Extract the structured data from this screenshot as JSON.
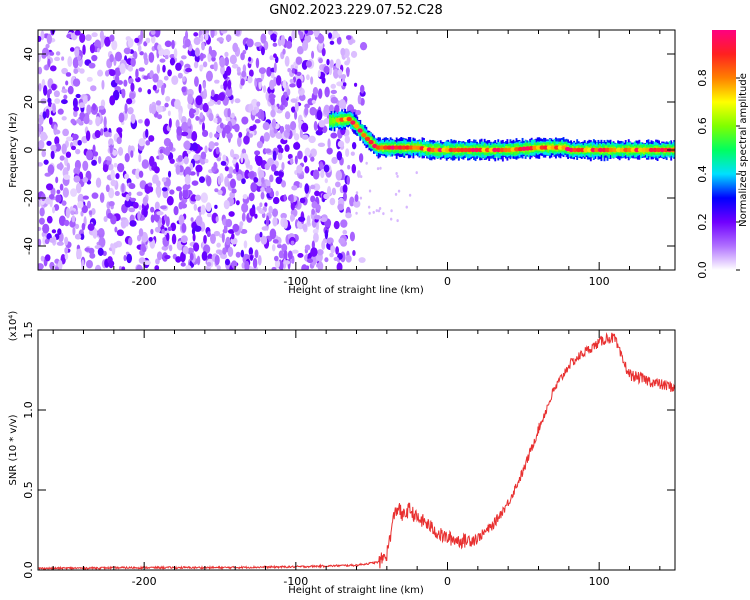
{
  "title": "GN02.2023.229.07.52.C28",
  "chart_data": [
    {
      "type": "heatmap",
      "xlabel": "Height of straight line (km)",
      "ylabel": "Frequency (Hz)",
      "xlim": [
        -270,
        150
      ],
      "ylim": [
        -50,
        50
      ],
      "xticks": [
        -200,
        -100,
        0,
        100
      ],
      "xtick_labels": [
        "-200",
        "-100",
        "0",
        "100"
      ],
      "yticks": [
        -40,
        -20,
        0,
        20,
        40
      ],
      "ytick_labels": [
        "-40",
        "-20",
        "0",
        "20",
        "40"
      ],
      "grid": false,
      "colorbar": {
        "label": "Normalized spectral amplitude",
        "range": [
          0,
          1
        ],
        "ticks": [
          0,
          0.2,
          0.4,
          0.6,
          0.8
        ],
        "tick_labels": [
          "0.0",
          "0.2",
          "0.4",
          "0.6",
          "0.8"
        ],
        "colors": [
          "#ffffff",
          "#b070ff",
          "#7000ff",
          "#0000ff",
          "#00e0ff",
          "#00ff60",
          "#80ff00",
          "#ffff00",
          "#ff8000",
          "#ff2020",
          "#ff0080"
        ]
      },
      "noise_region": {
        "x_range": [
          -270,
          -65
        ],
        "y_range": [
          -50,
          50
        ],
        "amplitude": "low (0.05-0.2)"
      },
      "signal_ridge": {
        "x": [
          -78,
          -65,
          -60,
          -55,
          -50,
          -47,
          -40,
          -30,
          -20,
          -10,
          0,
          20,
          40,
          60,
          78,
          80,
          100,
          120,
          150
        ],
        "y": [
          12,
          13,
          10,
          6,
          3,
          1,
          1,
          1,
          1,
          0,
          0,
          0,
          0,
          1,
          1,
          0,
          0,
          0,
          0
        ],
        "amplitude": "high (0.7-1.0) along center, 0.3-0.5 at edges"
      }
    },
    {
      "type": "line",
      "xlabel": "Height of straight line (km)",
      "ylabel": "SNR (10 * v/v)",
      "y_multiplier": "(x10⁴)",
      "xlim": [
        -270,
        150
      ],
      "ylim": [
        0,
        1.5
      ],
      "xticks": [
        -200,
        -100,
        0,
        100
      ],
      "xtick_labels": [
        "-200",
        "-100",
        "0",
        "100"
      ],
      "yticks": [
        0,
        0.5,
        1.0,
        1.5
      ],
      "ytick_labels": [
        "0.0",
        "0.5",
        "1.0",
        "1.5"
      ],
      "grid": false,
      "color": "#e83030",
      "series": [
        {
          "x": [
            -270,
            -200,
            -150,
            -100,
            -60,
            -45,
            -42,
            -40,
            -38,
            -35,
            -32,
            -30,
            -25,
            -20,
            -15,
            -10,
            -5,
            0,
            10,
            20,
            30,
            40,
            50,
            60,
            70,
            80,
            90,
            100,
            105,
            110,
            115,
            120,
            130,
            140,
            150
          ],
          "y": [
            0.01,
            0.015,
            0.015,
            0.02,
            0.03,
            0.05,
            0.08,
            0.1,
            0.2,
            0.35,
            0.4,
            0.33,
            0.38,
            0.32,
            0.3,
            0.26,
            0.22,
            0.2,
            0.18,
            0.2,
            0.28,
            0.42,
            0.62,
            0.88,
            1.12,
            1.28,
            1.36,
            1.42,
            1.45,
            1.45,
            1.32,
            1.22,
            1.19,
            1.16,
            1.14
          ]
        }
      ]
    }
  ]
}
